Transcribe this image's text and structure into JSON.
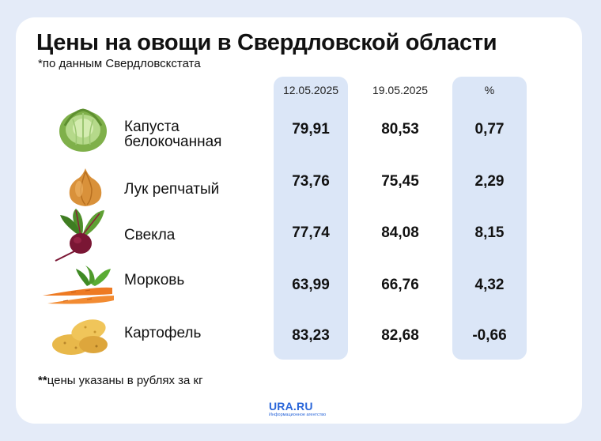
{
  "header": {
    "title": "Цены на овощи в Свердловской области",
    "subtitle": "*по данным Свердловскстата"
  },
  "table": {
    "columns": [
      "12.05.2025",
      "19.05.2025",
      "%"
    ],
    "rows": [
      {
        "name": "Капуста белокочанная",
        "icon": "cabbage-icon",
        "v1": "79,91",
        "v2": "80,53",
        "v3": "0,77"
      },
      {
        "name": "Лук репчатый",
        "icon": "onion-icon",
        "v1": "73,76",
        "v2": "75,45",
        "v3": "2,29"
      },
      {
        "name": "Свекла",
        "icon": "beet-icon",
        "v1": "77,74",
        "v2": "84,08",
        "v3": "8,15"
      },
      {
        "name": "Морковь",
        "icon": "carrot-icon",
        "v1": "63,99",
        "v2": "66,76",
        "v3": "4,32"
      },
      {
        "name": "Картофель",
        "icon": "potato-icon",
        "v1": "83,23",
        "v2": "82,68",
        "v3": "-0,66"
      }
    ]
  },
  "footer": {
    "note_stars": "**",
    "note": "цены указаны в рублях за кг",
    "logo": "URA.RU",
    "logo_tagline": "Информационное агентство"
  },
  "colors": {
    "background": "#e4ebf8",
    "card": "#ffffff",
    "highlight_column": "#dbe6f7",
    "logo": "#2a66d9"
  }
}
